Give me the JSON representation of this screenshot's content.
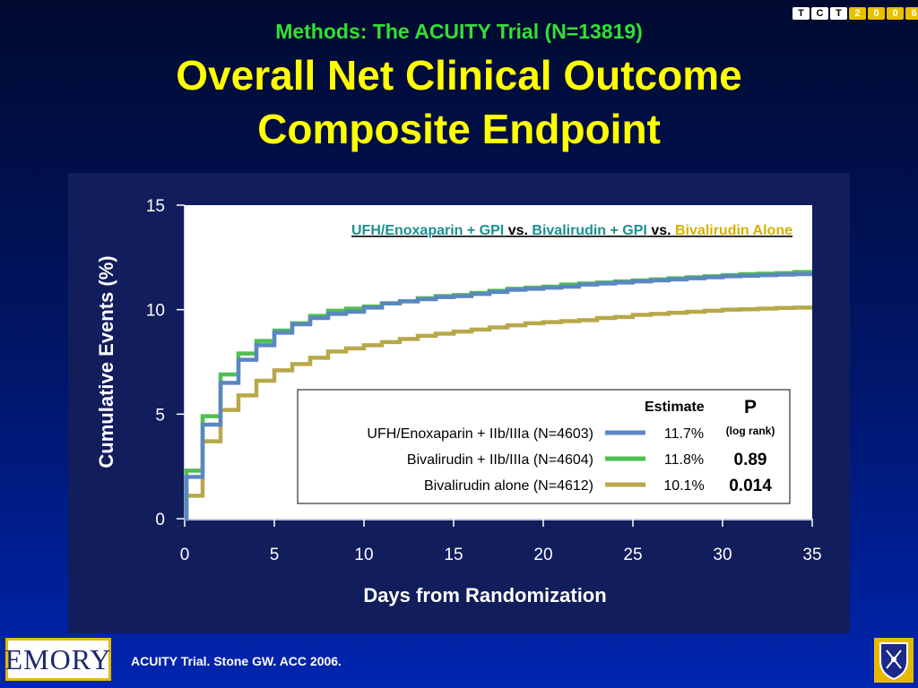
{
  "header": {
    "subtitle": "Methods: The ACUITY Trial (N=13819)",
    "title_line1": "Overall Net Clinical Outcome",
    "title_line2": "Composite Endpoint"
  },
  "logo_tct": [
    "T",
    "C",
    "T",
    "2",
    "0",
    "0",
    "6"
  ],
  "chart_data": {
    "type": "line",
    "ylabel": "Cumulative Events (%)",
    "xlabel": "Days from Randomization",
    "xlim": [
      0,
      35
    ],
    "ylim": [
      0,
      15
    ],
    "xticks": [
      0,
      5,
      10,
      15,
      20,
      25,
      30,
      35
    ],
    "yticks": [
      0,
      5,
      10,
      15
    ],
    "grid": false,
    "heading": [
      {
        "text": "UFH/Enoxaparin + GPI",
        "color": "#1a9090"
      },
      {
        "text": " vs. ",
        "color": "#000000"
      },
      {
        "text": "Bivalirudin + GPI",
        "color": "#1a9090"
      },
      {
        "text": " vs. ",
        "color": "#000000"
      },
      {
        "text": "Bivalirudin Alone",
        "color": "#d4b000"
      }
    ],
    "series": [
      {
        "name": "UFH/Enoxaparin + IIb/IIIa (N=4603)",
        "color": "#5b87c0",
        "estimate": "11.7%",
        "p": "(log rank)",
        "x": [
          0,
          0.1,
          1.0,
          2.0,
          3.0,
          4.0,
          5.0,
          6.0,
          7.0,
          8.0,
          9.0,
          10.0,
          11.0,
          12.0,
          13.0,
          14.0,
          15.0,
          16.0,
          17.0,
          18.0,
          19.0,
          20.0,
          21.0,
          22.0,
          23.0,
          24.0,
          25.0,
          26.0,
          27.0,
          28.0,
          29.0,
          30.0,
          31.0,
          32.0,
          33.0,
          34.0,
          35.0
        ],
        "y": [
          0,
          2.0,
          4.5,
          6.5,
          7.6,
          8.3,
          8.9,
          9.3,
          9.6,
          9.8,
          9.9,
          10.1,
          10.3,
          10.4,
          10.5,
          10.6,
          10.65,
          10.75,
          10.85,
          10.95,
          11.0,
          11.05,
          11.1,
          11.2,
          11.25,
          11.3,
          11.35,
          11.4,
          11.45,
          11.5,
          11.55,
          11.6,
          11.62,
          11.65,
          11.68,
          11.7,
          11.7
        ]
      },
      {
        "name": "Bivalirudin + IIb/IIIa (N=4604)",
        "color": "#4fbf4f",
        "estimate": "11.8%",
        "p": "0.89",
        "x": [
          0,
          0.1,
          1.0,
          2.0,
          3.0,
          4.0,
          5.0,
          6.0,
          7.0,
          8.0,
          9.0,
          10.0,
          11.0,
          12.0,
          13.0,
          14.0,
          15.0,
          16.0,
          17.0,
          18.0,
          19.0,
          20.0,
          21.0,
          22.0,
          23.0,
          24.0,
          25.0,
          26.0,
          27.0,
          28.0,
          29.0,
          30.0,
          31.0,
          32.0,
          33.0,
          34.0,
          35.0
        ],
        "y": [
          0,
          2.3,
          4.9,
          6.9,
          7.9,
          8.5,
          9.0,
          9.35,
          9.7,
          9.95,
          10.05,
          10.15,
          10.3,
          10.4,
          10.55,
          10.65,
          10.7,
          10.8,
          10.9,
          11.0,
          11.05,
          11.1,
          11.2,
          11.25,
          11.3,
          11.35,
          11.4,
          11.45,
          11.5,
          11.55,
          11.6,
          11.65,
          11.7,
          11.72,
          11.75,
          11.8,
          11.8
        ]
      },
      {
        "name": "Bivalirudin alone (N=4612)",
        "color": "#b8a84a",
        "estimate": "10.1%",
        "p": "0.014",
        "x": [
          0,
          0.1,
          1.0,
          2.0,
          3.0,
          4.0,
          5.0,
          6.0,
          7.0,
          8.0,
          9.0,
          10.0,
          11.0,
          12.0,
          13.0,
          14.0,
          15.0,
          16.0,
          17.0,
          18.0,
          19.0,
          20.0,
          21.0,
          22.0,
          23.0,
          24.0,
          25.0,
          26.0,
          27.0,
          28.0,
          29.0,
          30.0,
          31.0,
          32.0,
          33.0,
          34.0,
          35.0
        ],
        "y": [
          0,
          1.1,
          3.7,
          5.2,
          5.9,
          6.6,
          7.1,
          7.4,
          7.7,
          8.0,
          8.15,
          8.3,
          8.45,
          8.6,
          8.75,
          8.85,
          8.95,
          9.05,
          9.15,
          9.25,
          9.35,
          9.4,
          9.45,
          9.5,
          9.6,
          9.65,
          9.75,
          9.8,
          9.85,
          9.9,
          9.95,
          10.0,
          10.02,
          10.05,
          10.08,
          10.1,
          10.1
        ]
      }
    ],
    "legend": {
      "placement": "bottom-right",
      "estimate_header": "Estimate",
      "p_header": "P"
    }
  },
  "footer": {
    "emory_logo": "EMORY",
    "citation": "ACUITY Trial. Stone GW. ACC 2006."
  }
}
